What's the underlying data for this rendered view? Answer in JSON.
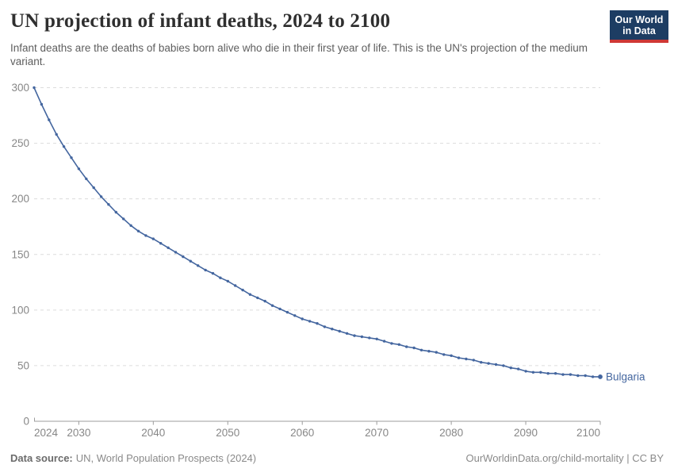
{
  "header": {
    "title": "UN projection of infant deaths, 2024 to 2100",
    "subtitle": "Infant deaths are the deaths of babies born alive who die in their first year of life. This is the UN's projection of the medium variant.",
    "logo": {
      "line1": "Our World",
      "line2": "in Data"
    }
  },
  "colors": {
    "series": "#44669f",
    "grid": "#dcdcdc",
    "axis": "#9c9c9c",
    "tick_label": "#878787",
    "logo_bg": "#1d3d63",
    "logo_bar": "#cf3835"
  },
  "chart_data": {
    "type": "line",
    "title": "UN projection of infant deaths, 2024 to 2100",
    "xlabel": "",
    "ylabel": "",
    "ylim": [
      0,
      300
    ],
    "yticks": [
      0,
      50,
      100,
      150,
      200,
      250,
      300
    ],
    "xticks": [
      2024,
      2030,
      2040,
      2050,
      2060,
      2070,
      2080,
      2090,
      2100
    ],
    "grid": "horizontal-dashed",
    "legend_position": "end-of-line-label",
    "x": [
      2024,
      2025,
      2026,
      2027,
      2028,
      2029,
      2030,
      2031,
      2032,
      2033,
      2034,
      2035,
      2036,
      2037,
      2038,
      2039,
      2040,
      2041,
      2042,
      2043,
      2044,
      2045,
      2046,
      2047,
      2048,
      2049,
      2050,
      2051,
      2052,
      2053,
      2054,
      2055,
      2056,
      2057,
      2058,
      2059,
      2060,
      2061,
      2062,
      2063,
      2064,
      2065,
      2066,
      2067,
      2068,
      2069,
      2070,
      2071,
      2072,
      2073,
      2074,
      2075,
      2076,
      2077,
      2078,
      2079,
      2080,
      2081,
      2082,
      2083,
      2084,
      2085,
      2086,
      2087,
      2088,
      2089,
      2090,
      2091,
      2092,
      2093,
      2094,
      2095,
      2096,
      2097,
      2098,
      2099,
      2100
    ],
    "series": [
      {
        "name": "Bulgaria",
        "end_label": "Bulgaria",
        "values": [
          300,
          285,
          271,
          258,
          247,
          237,
          227,
          218,
          210,
          202,
          195,
          188,
          182,
          176,
          171,
          167,
          164,
          160,
          156,
          152,
          148,
          144,
          140,
          136,
          133,
          129,
          126,
          122,
          118,
          114,
          111,
          108,
          104,
          101,
          98,
          95,
          92,
          90,
          88,
          85,
          83,
          81,
          79,
          77,
          76,
          75,
          74,
          72,
          70,
          69,
          67,
          66,
          64,
          63,
          62,
          60,
          59,
          57,
          56,
          55,
          53,
          52,
          51,
          50,
          48,
          47,
          45,
          44,
          44,
          43,
          43,
          42,
          42,
          41,
          41,
          40,
          40
        ]
      }
    ]
  },
  "footer": {
    "source_label": "Data source:",
    "source_text": "UN, World Population Prospects (2024)",
    "license_text": "OurWorldinData.org/child-mortality | CC BY"
  }
}
